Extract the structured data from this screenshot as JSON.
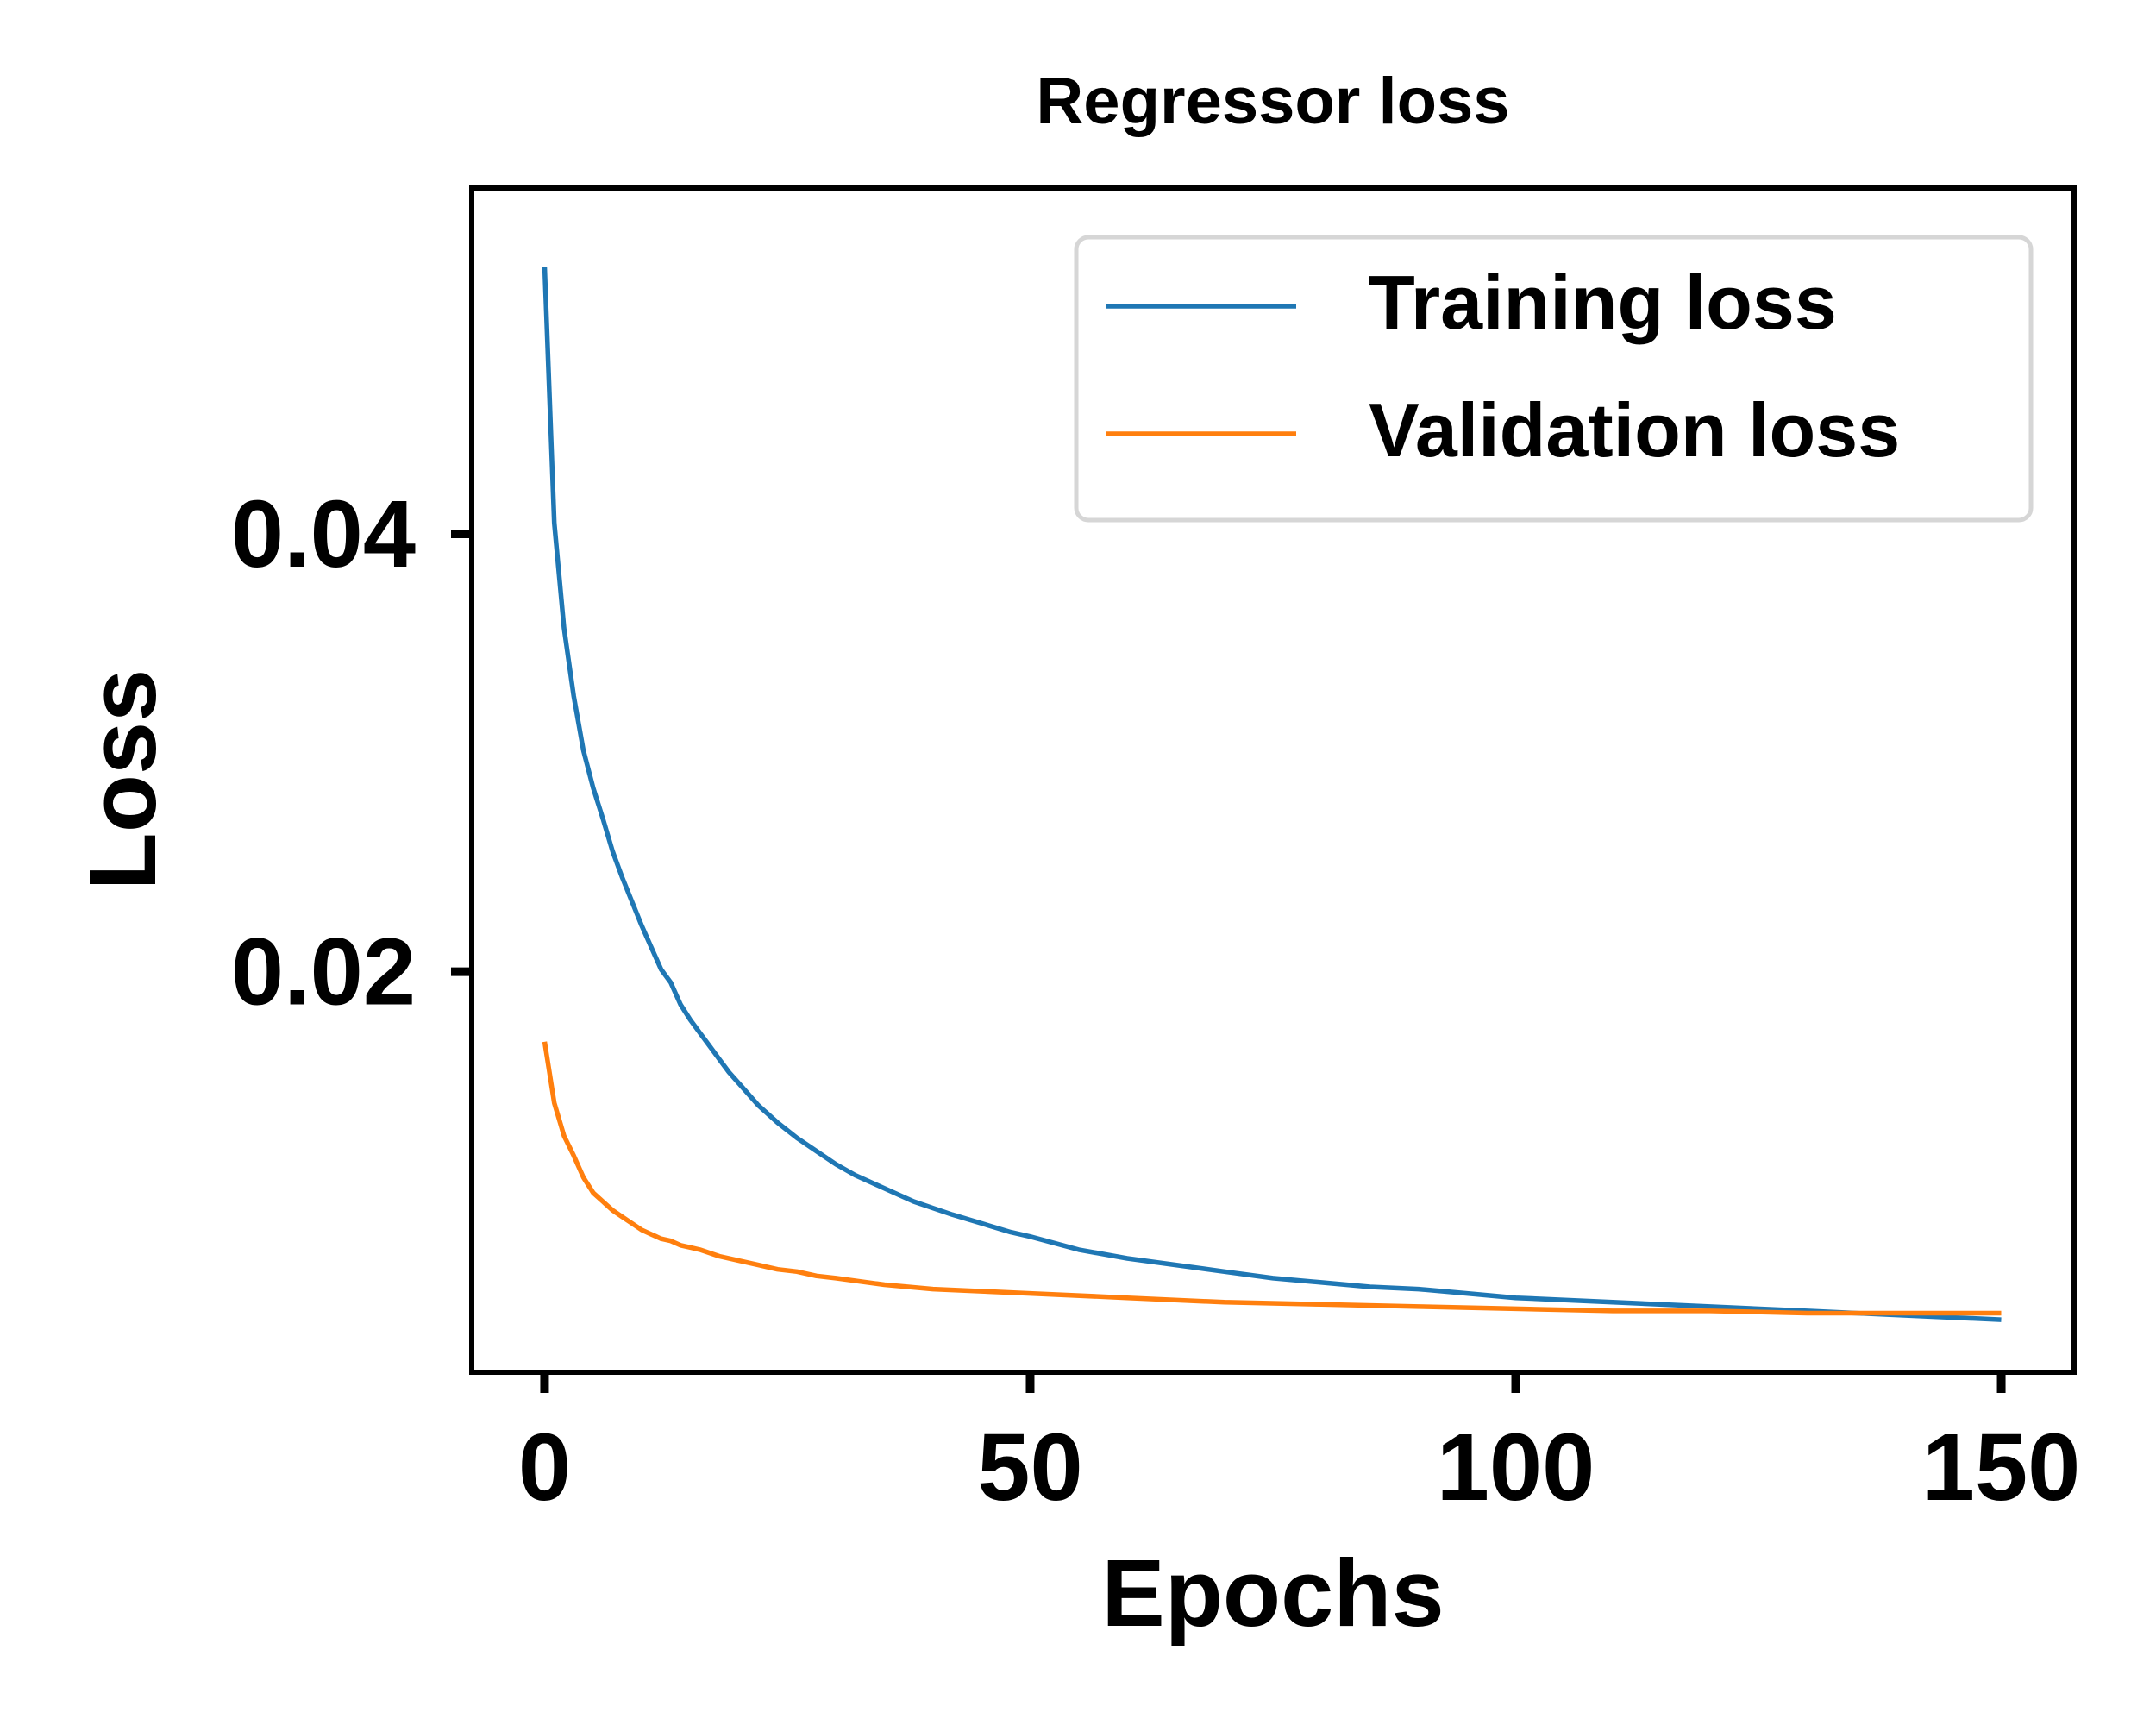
{
  "chart_data": {
    "type": "line",
    "title": "Regressor loss",
    "xlabel": "Epochs",
    "ylabel": "Loss",
    "xlim": [
      -7.5,
      157.5
    ],
    "ylim": [
      0.0017,
      0.0558
    ],
    "xticks": [
      0,
      50,
      100,
      150
    ],
    "xtick_labels": [
      "0",
      "50",
      "100",
      "150"
    ],
    "yticks": [
      0.02,
      0.04
    ],
    "ytick_labels": [
      "0.02",
      "0.04"
    ],
    "grid": false,
    "legend_position": "top-right",
    "series": [
      {
        "name": "Training loss",
        "color": "#1f77b4",
        "x": [
          0,
          1,
          2,
          3,
          4,
          5,
          6,
          7,
          8,
          9,
          10,
          11,
          12,
          13,
          14,
          15,
          16,
          17,
          18,
          19,
          20,
          22,
          24,
          26,
          28,
          30,
          32,
          34,
          36,
          38,
          40,
          42,
          45,
          48,
          50,
          55,
          60,
          65,
          70,
          75,
          80,
          85,
          90,
          95,
          100,
          110,
          120,
          130,
          140,
          150
        ],
        "y": [
          0.0522,
          0.0405,
          0.0357,
          0.0326,
          0.0301,
          0.0284,
          0.027,
          0.0255,
          0.0243,
          0.0232,
          0.0221,
          0.0211,
          0.0201,
          0.0195,
          0.0185,
          0.0178,
          0.0172,
          0.0166,
          0.016,
          0.0154,
          0.0149,
          0.0139,
          0.0131,
          0.0124,
          0.0118,
          0.0112,
          0.0107,
          0.0103,
          0.0099,
          0.0095,
          0.0092,
          0.0089,
          0.0085,
          0.0081,
          0.0079,
          0.0073,
          0.0069,
          0.0066,
          0.0063,
          0.006,
          0.0058,
          0.0056,
          0.0055,
          0.0053,
          0.0051,
          0.0049,
          0.0047,
          0.0045,
          0.0043,
          0.0041
        ]
      },
      {
        "name": "Validation loss",
        "color": "#ff7f0e",
        "x": [
          0,
          1,
          2,
          3,
          4,
          5,
          6,
          7,
          8,
          9,
          10,
          11,
          12,
          13,
          14,
          15,
          16,
          18,
          20,
          22,
          24,
          26,
          28,
          30,
          35,
          40,
          45,
          50,
          60,
          70,
          80,
          90,
          100,
          110,
          120,
          130,
          140,
          150
        ],
        "y": [
          0.0168,
          0.014,
          0.0125,
          0.0116,
          0.0106,
          0.0099,
          0.0095,
          0.0091,
          0.0088,
          0.0085,
          0.0082,
          0.008,
          0.0078,
          0.0077,
          0.0075,
          0.0074,
          0.0073,
          0.007,
          0.0068,
          0.0066,
          0.0064,
          0.0063,
          0.0061,
          0.006,
          0.0057,
          0.0055,
          0.0054,
          0.0053,
          0.0051,
          0.0049,
          0.0048,
          0.0047,
          0.0046,
          0.0045,
          0.0045,
          0.0044,
          0.0044,
          0.0044
        ]
      }
    ]
  }
}
